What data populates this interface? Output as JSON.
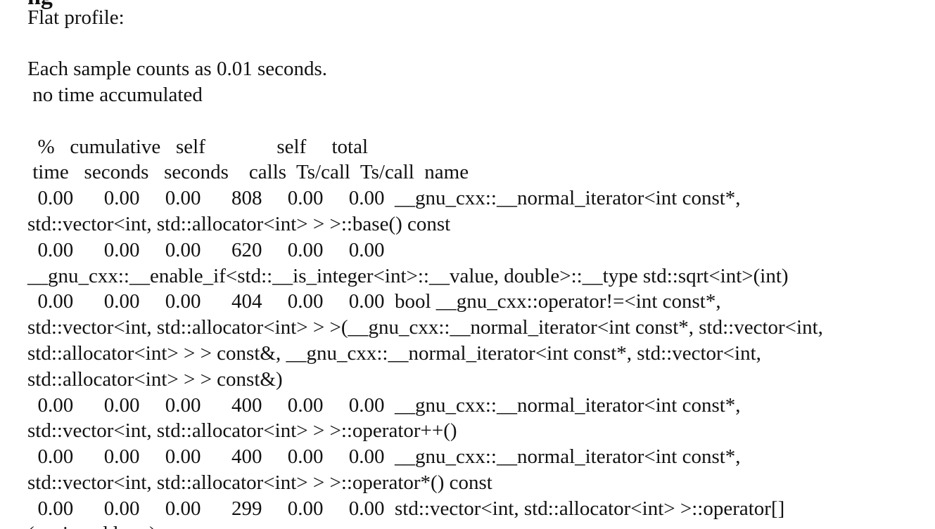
{
  "document": {
    "partial_heading": "ng",
    "heading": "Flat profile:",
    "sample_note": "Each sample counts as 0.01 seconds.",
    "accum_note": " no time accumulated",
    "header_line_1": "  %   cumulative   self              self     total",
    "header_line_2": " time   seconds   seconds    calls  Ts/call  Ts/call  name",
    "rows": [
      {
        "line_1": "  0.00      0.00     0.00      808     0.00     0.00  __gnu_cxx::__normal_iterator<int const*,",
        "line_2": "std::vector<int, std::allocator<int> > >::base() const"
      },
      {
        "line_1": "  0.00      0.00     0.00      620     0.00     0.00",
        "line_2": "__gnu_cxx::__enable_if<std::__is_integer<int>::__value, double>::__type std::sqrt<int>(int)"
      },
      {
        "line_1": "  0.00      0.00     0.00      404     0.00     0.00  bool __gnu_cxx::operator!=<int const*,",
        "line_2": "std::vector<int, std::allocator<int> > >(__gnu_cxx::__normal_iterator<int const*, std::vector<int,",
        "line_3": "std::allocator<int> > > const&, __gnu_cxx::__normal_iterator<int const*, std::vector<int,",
        "line_4": "std::allocator<int> > > const&)"
      },
      {
        "line_1": "  0.00      0.00     0.00      400     0.00     0.00  __gnu_cxx::__normal_iterator<int const*,",
        "line_2": "std::vector<int, std::allocator<int> > >::operator++()"
      },
      {
        "line_1": "  0.00      0.00     0.00      400     0.00     0.00  __gnu_cxx::__normal_iterator<int const*,",
        "line_2": "std::vector<int, std::allocator<int> > >::operator*() const"
      },
      {
        "line_1": "  0.00      0.00     0.00      299     0.00     0.00  std::vector<int, std::allocator<int> >::operator[]",
        "line_2": "(unsigned long)"
      }
    ]
  }
}
